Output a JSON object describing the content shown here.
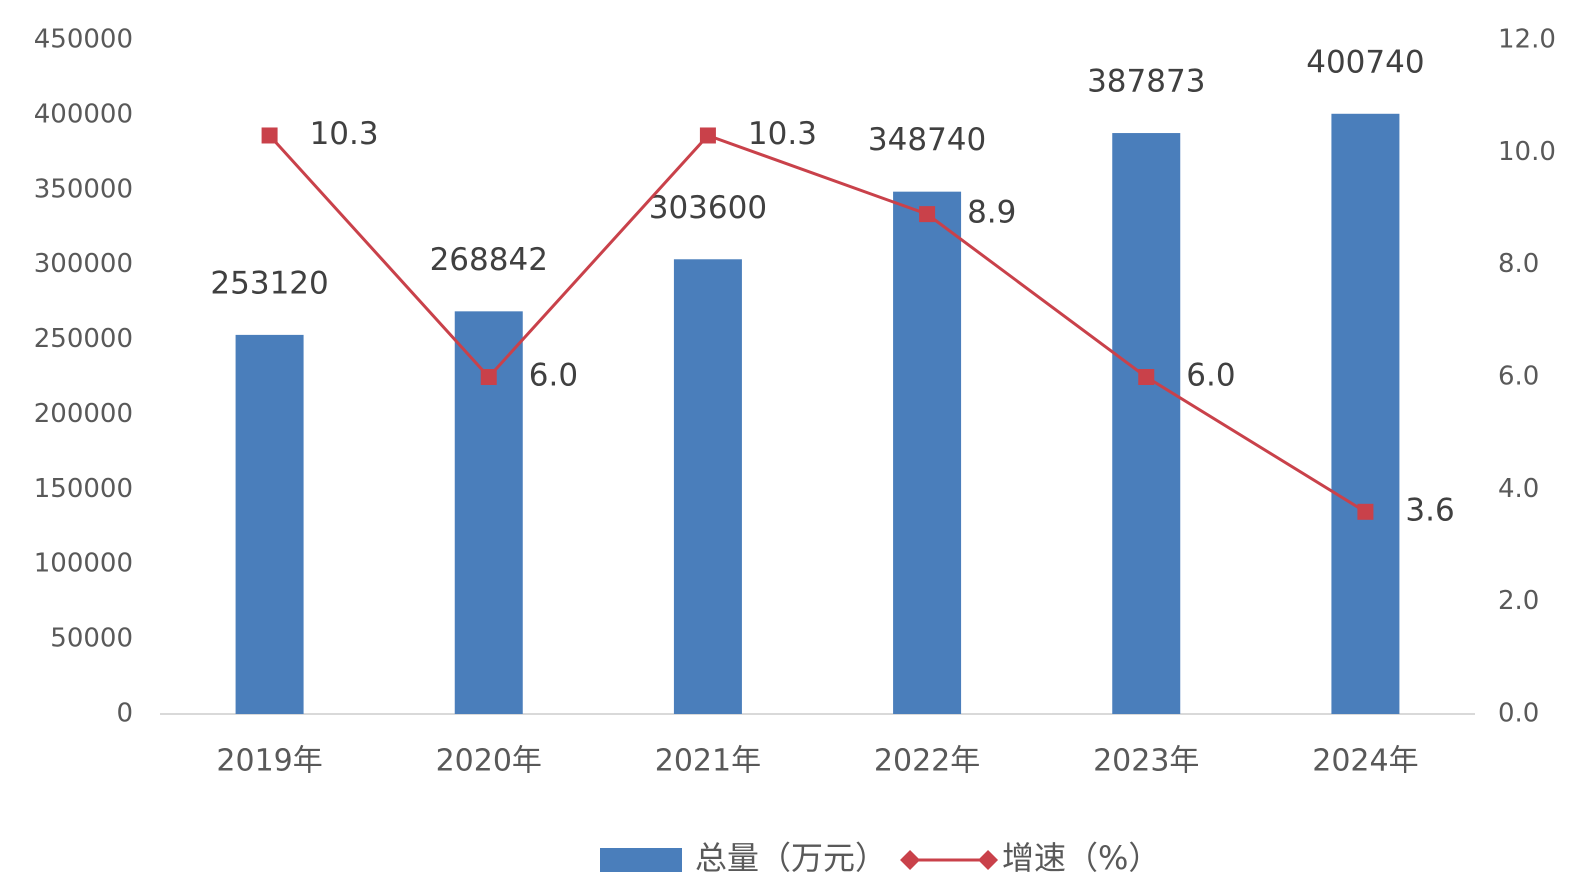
{
  "chart_data": {
    "type": "bar",
    "categories": [
      "2019年",
      "2020年",
      "2021年",
      "2022年",
      "2023年",
      "2024年"
    ],
    "series": [
      {
        "name": "总量（万元）",
        "type": "bar",
        "color": "#4a7ebb",
        "values": [
          253120,
          268842,
          303600,
          348740,
          387873,
          400740
        ]
      },
      {
        "name": "增速（%）",
        "type": "line",
        "axis": "y2",
        "color": "#c9414a",
        "values": [
          10.3,
          6.0,
          10.3,
          8.9,
          6.0,
          3.6
        ],
        "value_labels": [
          "10.3",
          "6.0",
          "10.3",
          "8.9",
          "6.0",
          "3.6"
        ]
      }
    ],
    "ylim": [
      0,
      450000
    ],
    "yticks": [
      0,
      50000,
      100000,
      150000,
      200000,
      250000,
      300000,
      350000,
      400000,
      450000
    ],
    "y2lim": [
      0,
      12
    ],
    "y2ticks": [
      {
        "value": 0,
        "label": "0.0"
      },
      {
        "value": 2,
        "label": "2.0"
      },
      {
        "value": 4,
        "label": "4.0"
      },
      {
        "value": 6,
        "label": "6.0"
      },
      {
        "value": 8,
        "label": "8.0"
      },
      {
        "value": 10,
        "label": "10.0"
      },
      {
        "value": 12,
        "label": "12.0"
      }
    ],
    "legend": "bottom",
    "grid": false
  }
}
